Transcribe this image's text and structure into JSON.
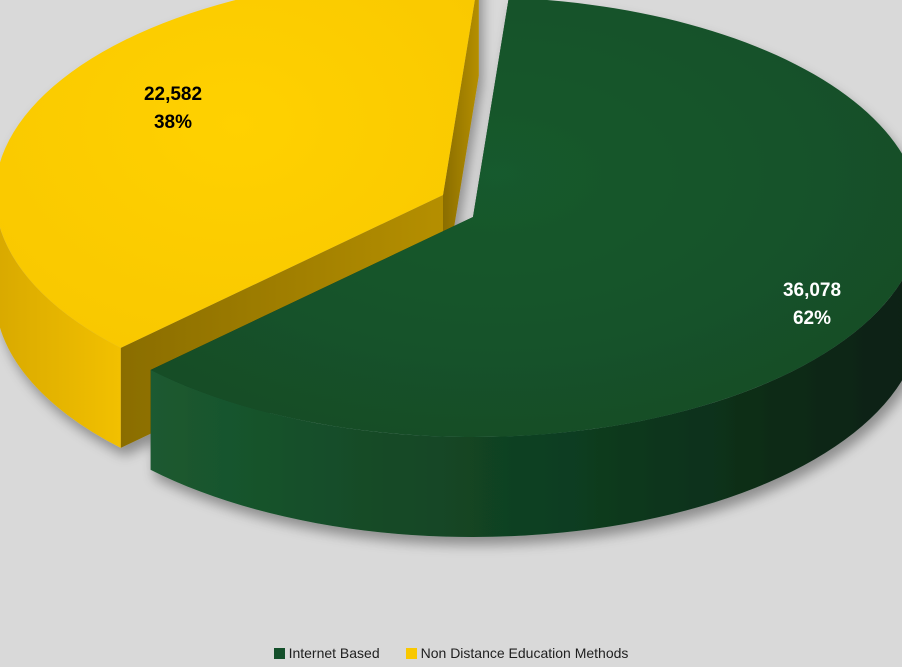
{
  "chart_data": {
    "type": "pie",
    "style": "3d-exploded",
    "title": "",
    "slices": [
      {
        "name": "Internet Based",
        "value": 36078,
        "value_label": "36,078",
        "percent_label": "62%",
        "color": "#134f2a",
        "label_color": "#ffffff"
      },
      {
        "name": "Non Distance Education Methods",
        "value": 22582,
        "value_label": "22,582",
        "percent_label": "38%",
        "color": "#f9c800",
        "label_color": "#000000"
      }
    ],
    "legend_placement": "bottom"
  }
}
